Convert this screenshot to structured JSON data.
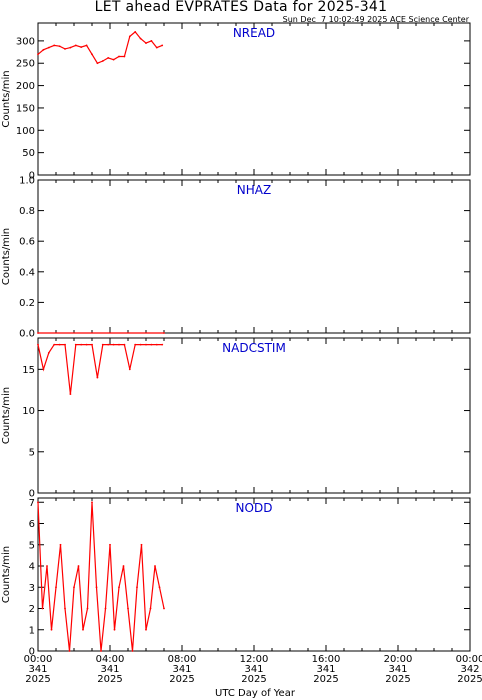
{
  "title": "LET ahead EVPRATES Data for 2025-341",
  "timestamp": "Sun Dec  7 10:02:49 2025 ACE Science Center",
  "x_axis_title": "UTC Day of Year",
  "x_ticks": [
    {
      "time": "00:00",
      "day": "341",
      "year": "2025"
    },
    {
      "time": "04:00",
      "day": "341",
      "year": "2025"
    },
    {
      "time": "08:00",
      "day": "341",
      "year": "2025"
    },
    {
      "time": "12:00",
      "day": "341",
      "year": "2025"
    },
    {
      "time": "16:00",
      "day": "341",
      "year": "2025"
    },
    {
      "time": "20:00",
      "day": "341",
      "year": "2025"
    },
    {
      "time": "00:00",
      "day": "342",
      "year": "2025"
    }
  ],
  "colors": {
    "data": "#ff0000",
    "panel_label": "#0000cc",
    "axes": "#000000"
  },
  "chart_data": [
    {
      "type": "line",
      "title": "NREAD",
      "ylabel": "Counts/min",
      "xlim": [
        0,
        24
      ],
      "ylim": [
        0,
        340
      ],
      "yticks": [
        0,
        50,
        100,
        150,
        200,
        250,
        300
      ],
      "x_hours": [
        0.0,
        0.3,
        0.6,
        0.9,
        1.2,
        1.5,
        1.8,
        2.1,
        2.4,
        2.7,
        3.0,
        3.3,
        3.6,
        3.9,
        4.2,
        4.5,
        4.8,
        5.1,
        5.4,
        5.7,
        6.0,
        6.3,
        6.6,
        6.9
      ],
      "values": [
        270,
        280,
        285,
        290,
        288,
        282,
        285,
        290,
        286,
        290,
        270,
        250,
        255,
        262,
        258,
        265,
        265,
        310,
        320,
        305,
        295,
        300,
        285,
        290
      ]
    },
    {
      "type": "line",
      "title": "NHAZ",
      "ylabel": "Counts/min",
      "xlim": [
        0,
        24
      ],
      "ylim": [
        0,
        1
      ],
      "yticks": [
        0.0,
        0.2,
        0.4,
        0.6,
        0.8,
        1.0
      ],
      "x_hours": [
        0.0,
        7.0
      ],
      "values": [
        0,
        0
      ]
    },
    {
      "type": "line",
      "title": "NADCSTIM",
      "ylabel": "Counts/min",
      "xlim": [
        0,
        24
      ],
      "ylim": [
        0,
        18.8
      ],
      "yticks": [
        0,
        5,
        10,
        15
      ],
      "x_hours": [
        0.0,
        0.3,
        0.6,
        0.9,
        1.2,
        1.5,
        1.8,
        2.1,
        2.4,
        2.7,
        3.0,
        3.3,
        3.6,
        3.9,
        4.2,
        4.5,
        4.8,
        5.1,
        5.4,
        5.7,
        6.0,
        6.3,
        6.6,
        6.9
      ],
      "values": [
        18,
        15,
        17,
        18,
        18,
        18,
        12,
        18,
        18,
        18,
        18,
        14,
        18,
        18,
        18,
        18,
        18,
        15,
        18,
        18,
        18,
        18,
        18,
        18
      ]
    },
    {
      "type": "line",
      "title": "NODD",
      "ylabel": "Counts/min",
      "xlim": [
        0,
        24
      ],
      "ylim": [
        0,
        7.2
      ],
      "yticks": [
        0,
        1,
        2,
        3,
        4,
        5,
        6,
        7
      ],
      "x_hours": [
        0.0,
        0.25,
        0.5,
        0.75,
        1.0,
        1.25,
        1.5,
        1.75,
        2.0,
        2.25,
        2.5,
        2.75,
        3.0,
        3.25,
        3.5,
        3.75,
        4.0,
        4.25,
        4.5,
        4.75,
        5.0,
        5.25,
        5.5,
        5.75,
        6.0,
        6.25,
        6.5,
        6.75,
        7.0
      ],
      "values": [
        7,
        2,
        4,
        1,
        3,
        5,
        2,
        0,
        3,
        4,
        1,
        2,
        7,
        3,
        0,
        2,
        5,
        1,
        3,
        4,
        2,
        0,
        3,
        5,
        1,
        2,
        4,
        3,
        2
      ]
    }
  ]
}
